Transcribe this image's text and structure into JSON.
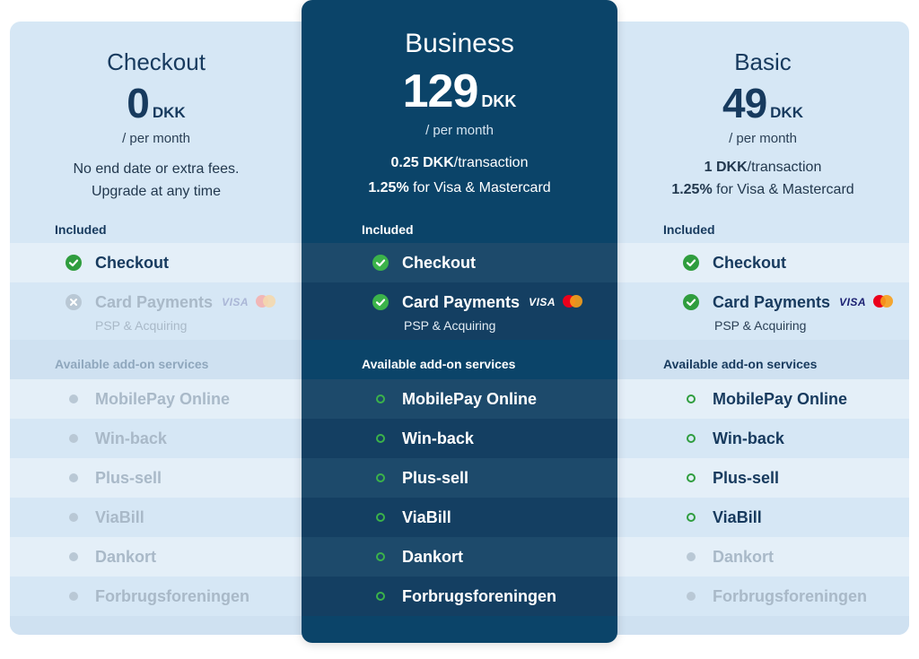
{
  "colors": {
    "accent_green": "#2f9d3e",
    "featured_bg": "#0b4469",
    "panel_bg": "#d6e7f5",
    "title_text": "#173a5e"
  },
  "plans": {
    "checkout": {
      "name": "Checkout",
      "price": "0",
      "currency": "DKK",
      "period": "/ per month",
      "info_line1": "No end date or extra fees.",
      "info_line2": "Upgrade at any time",
      "included_header": "Included",
      "included": [
        {
          "label": "Checkout",
          "status": "check"
        },
        {
          "label": "Card Payments",
          "sub": "PSP & Acquiring",
          "status": "cross",
          "visa": "VISA"
        }
      ],
      "addons_header": "Available add-on services",
      "addons": [
        {
          "label": "MobilePay Online",
          "status": "unavailable"
        },
        {
          "label": "Win-back",
          "status": "unavailable"
        },
        {
          "label": "Plus-sell",
          "status": "unavailable"
        },
        {
          "label": "ViaBill",
          "status": "unavailable"
        },
        {
          "label": "Dankort",
          "status": "unavailable"
        },
        {
          "label": "Forbrugsforeningen",
          "status": "unavailable"
        }
      ]
    },
    "business": {
      "name": "Business",
      "price": "129",
      "currency": "DKK",
      "period": "/ per month",
      "fee1_value": "0.25 DKK",
      "fee1_text": "/transaction",
      "fee2_value": "1.25%",
      "fee2_text": " for Visa & Mastercard",
      "included_header": "Included",
      "included": [
        {
          "label": "Checkout",
          "status": "check"
        },
        {
          "label": "Card Payments",
          "sub": "PSP & Acquiring",
          "status": "check",
          "visa": "VISA"
        }
      ],
      "addons_header": "Available add-on services",
      "addons": [
        {
          "label": "MobilePay Online",
          "status": "available"
        },
        {
          "label": "Win-back",
          "status": "available"
        },
        {
          "label": "Plus-sell",
          "status": "available"
        },
        {
          "label": "ViaBill",
          "status": "available"
        },
        {
          "label": "Dankort",
          "status": "available"
        },
        {
          "label": "Forbrugsforeningen",
          "status": "available"
        }
      ]
    },
    "basic": {
      "name": "Basic",
      "price": "49",
      "currency": "DKK",
      "period": "/ per month",
      "fee1_value": "1 DKK",
      "fee1_text": "/transaction",
      "fee2_value": "1.25%",
      "fee2_text": " for Visa & Mastercard",
      "included_header": "Included",
      "included": [
        {
          "label": "Checkout",
          "status": "check"
        },
        {
          "label": "Card Payments",
          "sub": "PSP & Acquiring",
          "status": "check",
          "visa": "VISA"
        }
      ],
      "addons_header": "Available add-on services",
      "addons": [
        {
          "label": "MobilePay Online",
          "status": "available"
        },
        {
          "label": "Win-back",
          "status": "available"
        },
        {
          "label": "Plus-sell",
          "status": "available"
        },
        {
          "label": "ViaBill",
          "status": "available"
        },
        {
          "label": "Dankort",
          "status": "unavailable"
        },
        {
          "label": "Forbrugsforeningen",
          "status": "unavailable"
        }
      ]
    }
  }
}
